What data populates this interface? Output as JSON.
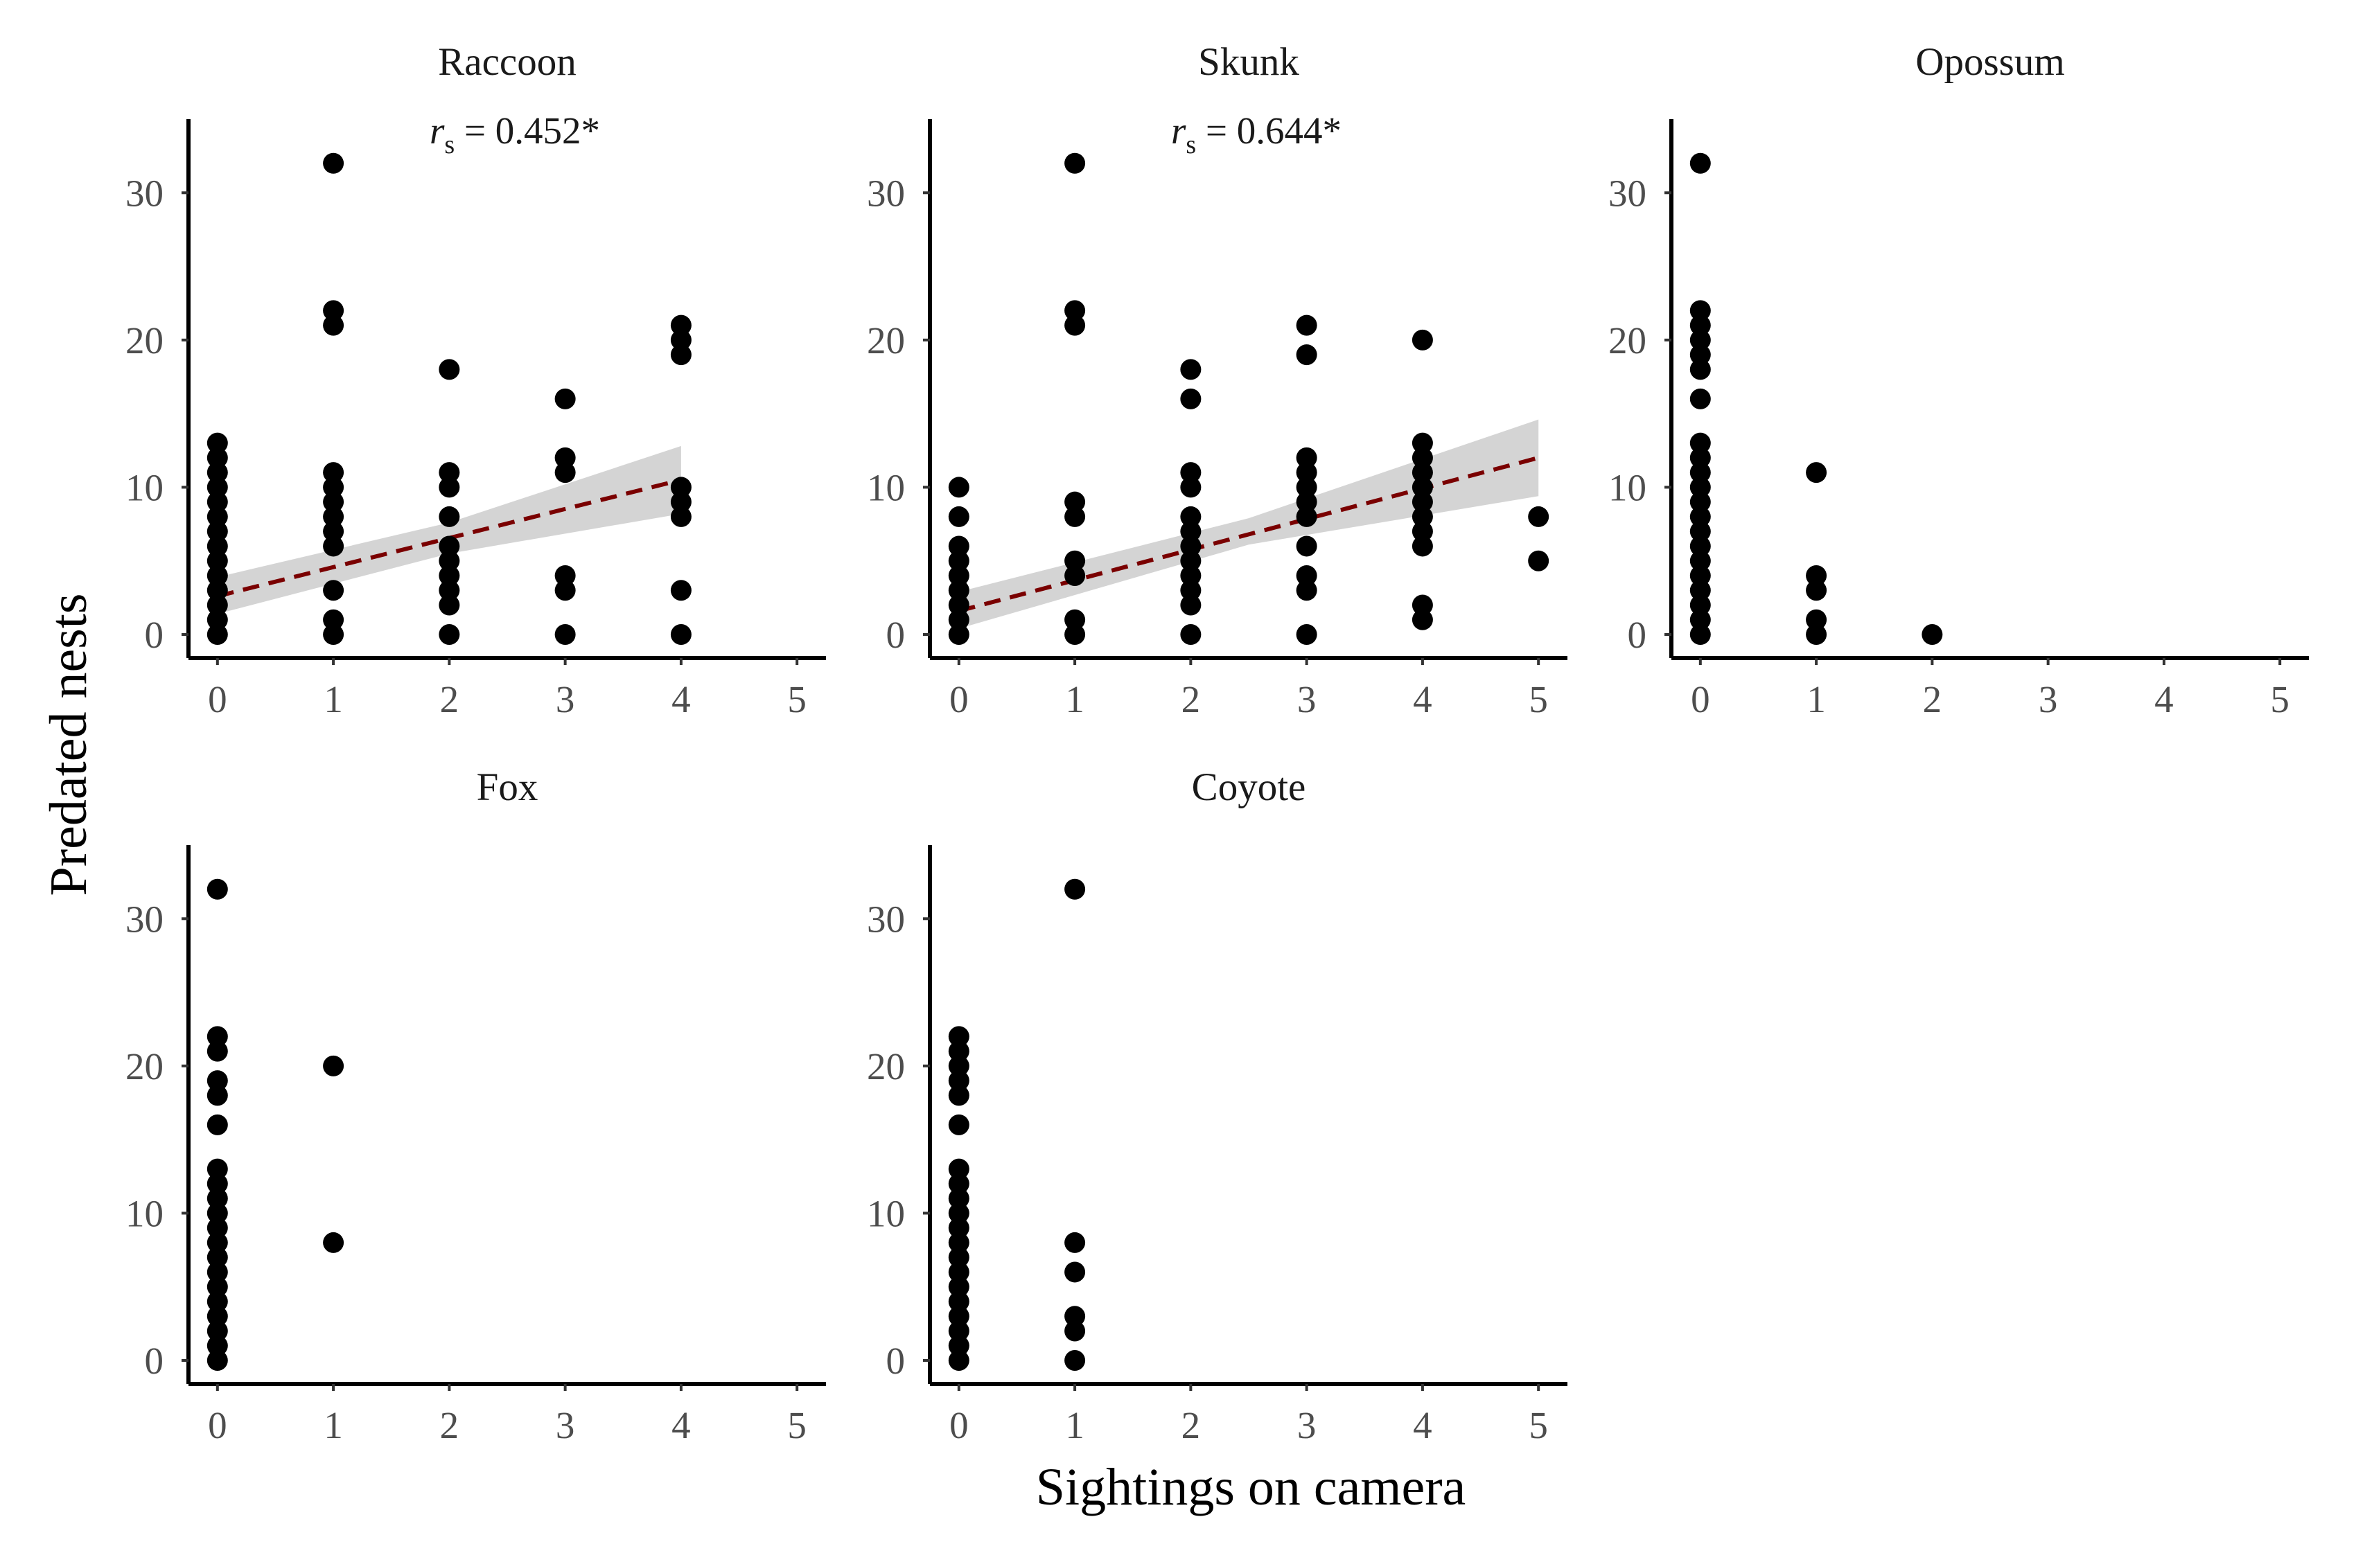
{
  "chart_data": {
    "type": "scatter",
    "xlabel": "Sightings on camera",
    "ylabel": "Predated nests",
    "xlim": [
      -0.25,
      5.25
    ],
    "ylim": [
      -1.6,
      35
    ],
    "x_ticks": [
      "0",
      "1",
      "2",
      "3",
      "4",
      "5"
    ],
    "y_ticks": [
      "0",
      "10",
      "20",
      "30"
    ],
    "x_tick_values": [
      0,
      1,
      2,
      3,
      4,
      5
    ],
    "y_tick_values": [
      0,
      10,
      20,
      30
    ],
    "colors": {
      "points": "#000000",
      "trend_line": "#7a0000",
      "confidence_band": "#bdbdbd"
    },
    "panels": [
      {
        "title": "Raccoon",
        "stat_symbol": "r",
        "stat_subscript": "s",
        "stat_value": " = 0.452*",
        "points": [
          [
            0,
            0
          ],
          [
            0,
            1
          ],
          [
            0,
            2
          ],
          [
            0,
            3
          ],
          [
            0,
            4
          ],
          [
            0,
            5
          ],
          [
            0,
            6
          ],
          [
            0,
            7
          ],
          [
            0,
            8
          ],
          [
            0,
            9
          ],
          [
            0,
            10
          ],
          [
            0,
            11
          ],
          [
            0,
            12
          ],
          [
            0,
            13
          ],
          [
            1,
            0
          ],
          [
            1,
            1
          ],
          [
            1,
            3
          ],
          [
            1,
            6
          ],
          [
            1,
            7
          ],
          [
            1,
            8
          ],
          [
            1,
            9
          ],
          [
            1,
            10
          ],
          [
            1,
            11
          ],
          [
            1,
            21
          ],
          [
            1,
            22
          ],
          [
            1,
            32
          ],
          [
            2,
            0
          ],
          [
            2,
            2
          ],
          [
            2,
            3
          ],
          [
            2,
            4
          ],
          [
            2,
            5
          ],
          [
            2,
            6
          ],
          [
            2,
            8
          ],
          [
            2,
            10
          ],
          [
            2,
            11
          ],
          [
            2,
            18
          ],
          [
            3,
            0
          ],
          [
            3,
            3
          ],
          [
            3,
            4
          ],
          [
            3,
            11
          ],
          [
            3,
            12
          ],
          [
            3,
            16
          ],
          [
            4,
            0
          ],
          [
            4,
            3
          ],
          [
            4,
            8
          ],
          [
            4,
            9
          ],
          [
            4,
            10
          ],
          [
            4,
            19
          ],
          [
            4,
            20
          ],
          [
            4,
            21
          ]
        ],
        "trend": {
          "x0": 0,
          "y0": 2.6,
          "x1": 4,
          "y1": 10.5,
          "ci_start": [
            1.4,
            3.9
          ],
          "ci_mid": [
            5.5,
            7.6
          ],
          "ci_end": [
            8.2,
            12.8
          ]
        }
      },
      {
        "title": "Skunk",
        "stat_symbol": "r",
        "stat_subscript": "s",
        "stat_value": " = 0.644*",
        "points": [
          [
            0,
            0
          ],
          [
            0,
            1
          ],
          [
            0,
            2
          ],
          [
            0,
            3
          ],
          [
            0,
            4
          ],
          [
            0,
            5
          ],
          [
            0,
            6
          ],
          [
            0,
            8
          ],
          [
            0,
            10
          ],
          [
            1,
            0
          ],
          [
            1,
            1
          ],
          [
            1,
            4
          ],
          [
            1,
            5
          ],
          [
            1,
            8
          ],
          [
            1,
            9
          ],
          [
            1,
            21
          ],
          [
            1,
            22
          ],
          [
            1,
            32
          ],
          [
            2,
            0
          ],
          [
            2,
            2
          ],
          [
            2,
            3
          ],
          [
            2,
            4
          ],
          [
            2,
            5
          ],
          [
            2,
            6
          ],
          [
            2,
            7
          ],
          [
            2,
            8
          ],
          [
            2,
            10
          ],
          [
            2,
            11
          ],
          [
            2,
            16
          ],
          [
            2,
            18
          ],
          [
            3,
            0
          ],
          [
            3,
            3
          ],
          [
            3,
            4
          ],
          [
            3,
            6
          ],
          [
            3,
            8
          ],
          [
            3,
            9
          ],
          [
            3,
            10
          ],
          [
            3,
            11
          ],
          [
            3,
            12
          ],
          [
            3,
            19
          ],
          [
            3,
            21
          ],
          [
            4,
            1
          ],
          [
            4,
            2
          ],
          [
            4,
            6
          ],
          [
            4,
            7
          ],
          [
            4,
            8
          ],
          [
            4,
            9
          ],
          [
            4,
            10
          ],
          [
            4,
            11
          ],
          [
            4,
            12
          ],
          [
            4,
            13
          ],
          [
            4,
            20
          ],
          [
            5,
            5
          ],
          [
            5,
            8
          ]
        ],
        "trend": {
          "x0": 0,
          "y0": 1.6,
          "x1": 5,
          "y1": 12.0,
          "ci_start": [
            0.4,
            2.9
          ],
          "ci_mid": [
            6.1,
            7.9
          ],
          "ci_end": [
            9.4,
            14.6
          ]
        }
      },
      {
        "title": "Opossum",
        "points": [
          [
            0,
            0
          ],
          [
            0,
            1
          ],
          [
            0,
            2
          ],
          [
            0,
            3
          ],
          [
            0,
            4
          ],
          [
            0,
            5
          ],
          [
            0,
            6
          ],
          [
            0,
            7
          ],
          [
            0,
            8
          ],
          [
            0,
            9
          ],
          [
            0,
            10
          ],
          [
            0,
            11
          ],
          [
            0,
            12
          ],
          [
            0,
            13
          ],
          [
            0,
            16
          ],
          [
            0,
            18
          ],
          [
            0,
            19
          ],
          [
            0,
            20
          ],
          [
            0,
            21
          ],
          [
            0,
            22
          ],
          [
            0,
            32
          ],
          [
            1,
            0
          ],
          [
            1,
            1
          ],
          [
            1,
            3
          ],
          [
            1,
            4
          ],
          [
            1,
            11
          ],
          [
            2,
            0
          ]
        ]
      },
      {
        "title": "Fox",
        "points": [
          [
            0,
            0
          ],
          [
            0,
            1
          ],
          [
            0,
            2
          ],
          [
            0,
            3
          ],
          [
            0,
            4
          ],
          [
            0,
            5
          ],
          [
            0,
            6
          ],
          [
            0,
            7
          ],
          [
            0,
            8
          ],
          [
            0,
            9
          ],
          [
            0,
            10
          ],
          [
            0,
            11
          ],
          [
            0,
            12
          ],
          [
            0,
            13
          ],
          [
            0,
            16
          ],
          [
            0,
            18
          ],
          [
            0,
            19
          ],
          [
            0,
            21
          ],
          [
            0,
            22
          ],
          [
            0,
            32
          ],
          [
            1,
            8
          ],
          [
            1,
            20
          ]
        ]
      },
      {
        "title": "Coyote",
        "points": [
          [
            0,
            0
          ],
          [
            0,
            1
          ],
          [
            0,
            2
          ],
          [
            0,
            3
          ],
          [
            0,
            4
          ],
          [
            0,
            5
          ],
          [
            0,
            6
          ],
          [
            0,
            7
          ],
          [
            0,
            8
          ],
          [
            0,
            9
          ],
          [
            0,
            10
          ],
          [
            0,
            11
          ],
          [
            0,
            12
          ],
          [
            0,
            13
          ],
          [
            0,
            16
          ],
          [
            0,
            18
          ],
          [
            0,
            19
          ],
          [
            0,
            20
          ],
          [
            0,
            21
          ],
          [
            0,
            22
          ],
          [
            1,
            0
          ],
          [
            1,
            2
          ],
          [
            1,
            3
          ],
          [
            1,
            6
          ],
          [
            1,
            8
          ],
          [
            1,
            32
          ]
        ]
      }
    ]
  }
}
